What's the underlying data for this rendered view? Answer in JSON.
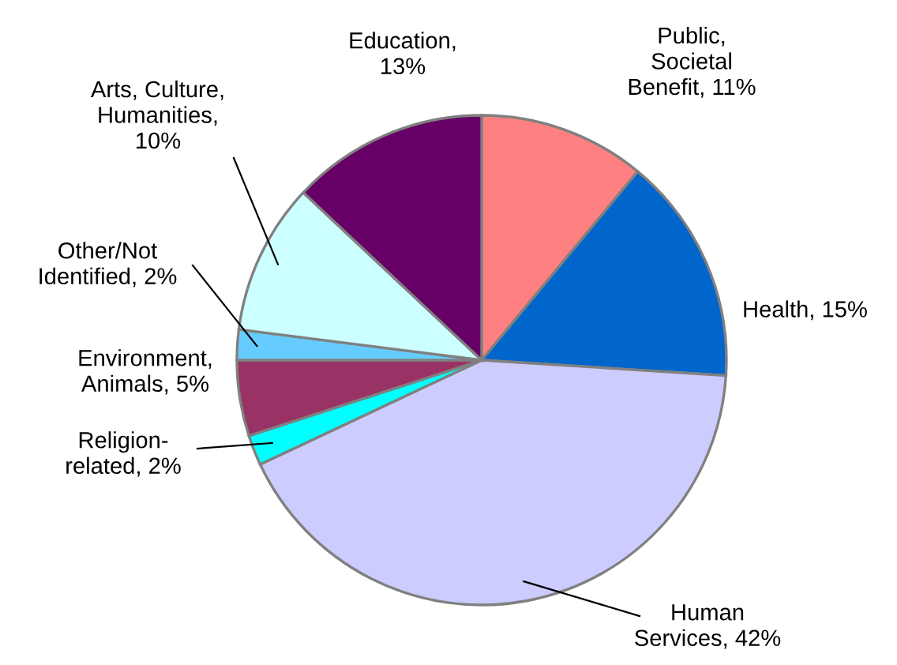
{
  "chart_data": {
    "type": "pie",
    "categories": [
      "Public,\nSocietal\nBenefit, 11%",
      "Health, 15%",
      "Human\nServices, 42%",
      "Religion-\nrelated, 2%",
      "Environment,\nAnimals, 5%",
      "Other/Not\nIdentified, 2%",
      "Arts, Culture,\nHumanities,\n10%",
      "Education,\n13%"
    ],
    "values": [
      11,
      15,
      42,
      2,
      5,
      2,
      10,
      13
    ],
    "colors": [
      "#ff8080",
      "#0066cc",
      "#ccccff",
      "#00ffff",
      "#993366",
      "#66ccff",
      "#ccffff",
      "#660066"
    ],
    "legend": false
  }
}
